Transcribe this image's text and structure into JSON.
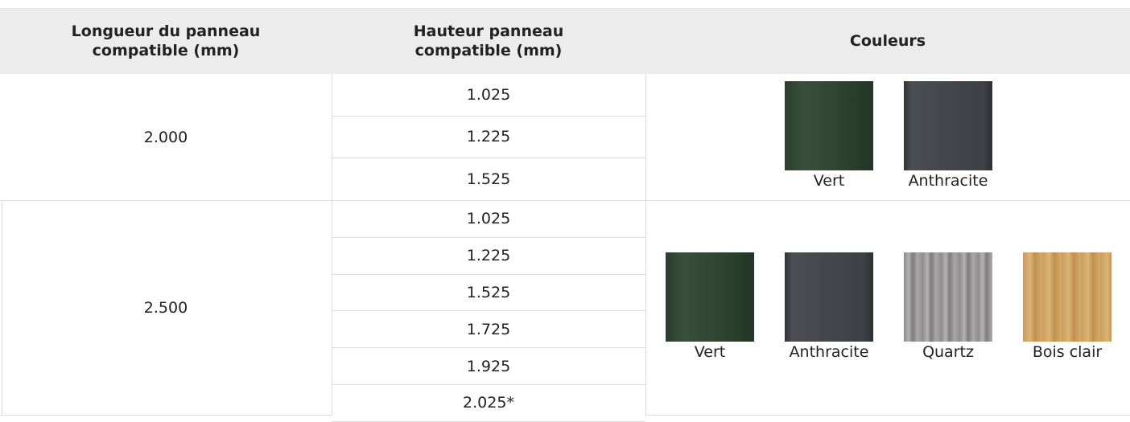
{
  "table": {
    "header": [
      "Longueur du panneau compatible (mm)",
      "Hauteur panneau compatible (mm)",
      "Couleurs"
    ],
    "groups": [
      {
        "length": "2.000",
        "heights": [
          "1.025",
          "1.225",
          "1.525"
        ],
        "colors": [
          "Vert",
          "Anthracite"
        ]
      },
      {
        "length": "2.500",
        "heights": [
          "1.025",
          "1.225",
          "1.525",
          "1.725",
          "1.925",
          "2.025*"
        ],
        "colors": [
          "Vert",
          "Anthracite",
          "Quartz",
          "Bois clair"
        ]
      }
    ]
  }
}
